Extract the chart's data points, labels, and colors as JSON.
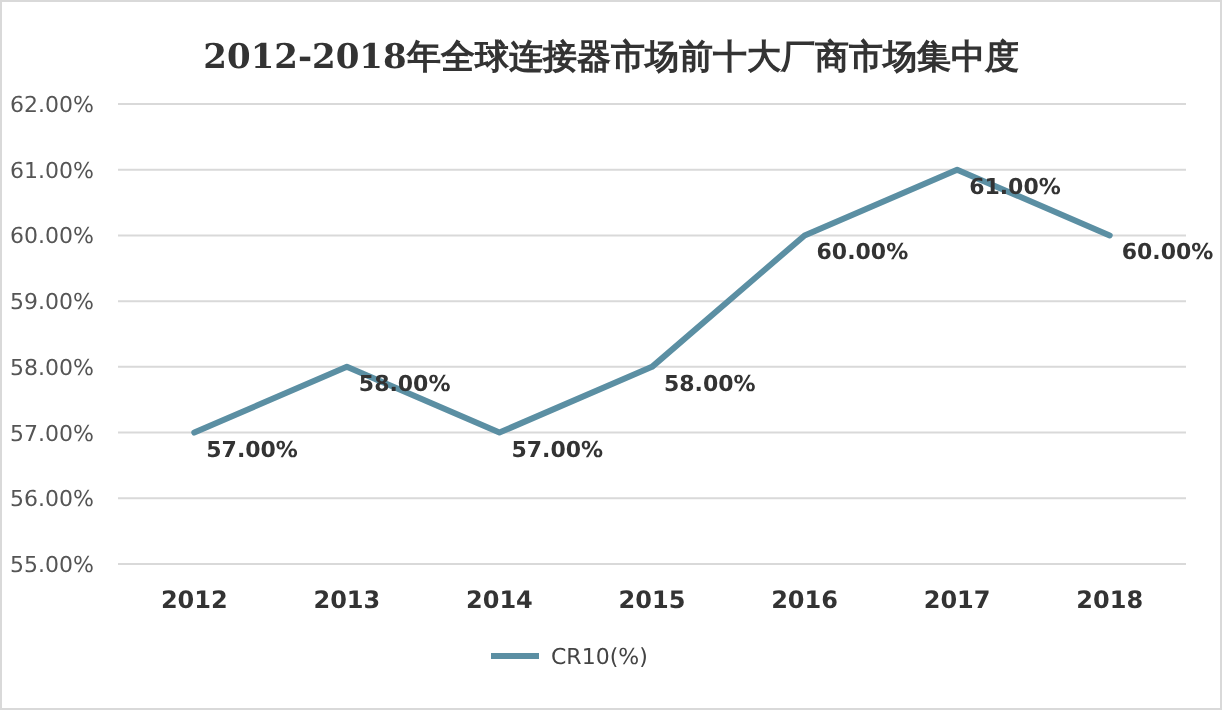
{
  "chart_data": {
    "type": "line",
    "title": "2012-2018年全球连接器市场前十大厂商市场集中度",
    "categories": [
      "2012",
      "2013",
      "2014",
      "2015",
      "2016",
      "2017",
      "2018"
    ],
    "series": [
      {
        "name": "CR10(%)",
        "color": "#5b8fa3",
        "values": [
          57,
          58,
          57,
          58,
          60,
          61,
          60
        ],
        "value_labels": [
          "57.00%",
          "58.00%",
          "57.00%",
          "58.00%",
          "60.00%",
          "61.00%",
          "60.00%"
        ]
      }
    ],
    "ylim": [
      55,
      62
    ],
    "yticks": [
      {
        "value": 55,
        "label": "55.00%"
      },
      {
        "value": 56,
        "label": "56.00%"
      },
      {
        "value": 57,
        "label": "57.00%"
      },
      {
        "value": 58,
        "label": "58.00%"
      },
      {
        "value": 59,
        "label": "59.00%"
      },
      {
        "value": 60,
        "label": "60.00%"
      },
      {
        "value": 61,
        "label": "61.00%"
      },
      {
        "value": 62,
        "label": "62.00%"
      }
    ],
    "grid": "y",
    "legend": "bottom",
    "marker": "none",
    "line_style": "solid"
  }
}
